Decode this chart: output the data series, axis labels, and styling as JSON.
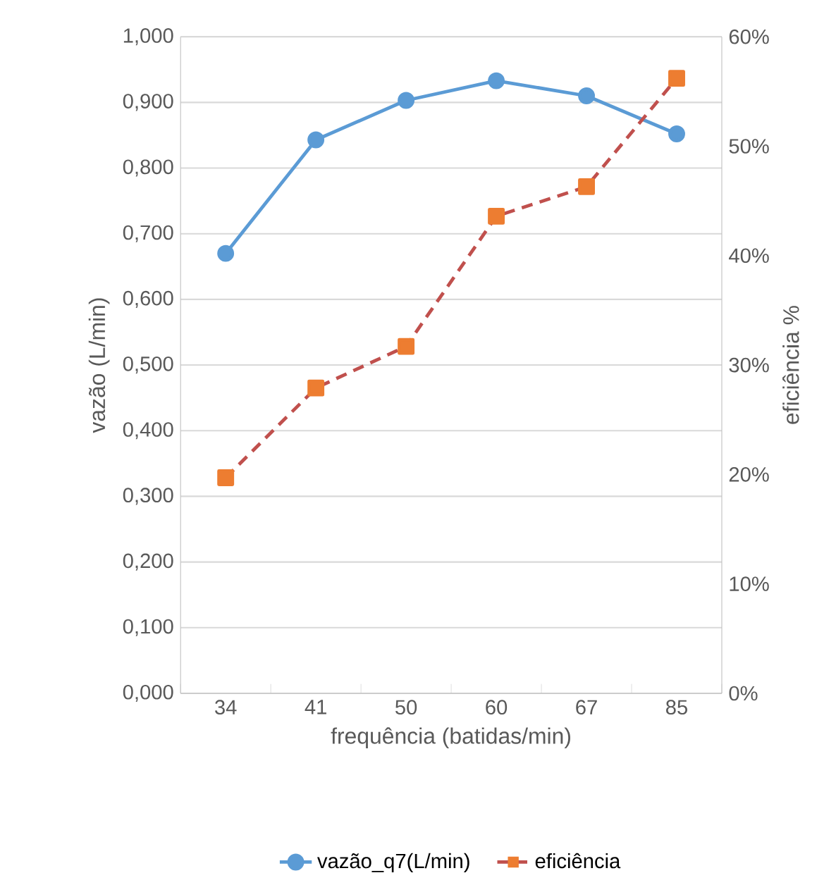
{
  "chart_data": {
    "type": "line",
    "xlabel": "frequência (batidas/min)",
    "ylabel": "vazão (L/min)",
    "y2label": "eficiência %",
    "categories": [
      "34",
      "41",
      "50",
      "60",
      "67",
      "85"
    ],
    "series": [
      {
        "name": "vazão_q7(L/min)",
        "color": "#5b9bd5",
        "marker": "circle",
        "line_style": "solid",
        "values": [
          0.67,
          0.843,
          0.903,
          0.933,
          0.91,
          0.852
        ]
      },
      {
        "name": "eficiência",
        "color": "#c0504d",
        "colors": [
          "#ed7d31",
          "#ed7d31",
          "#ed7d31",
          "#ed7d31",
          "#ed7d31",
          "#ed7d31"
        ],
        "marker": "square",
        "line_style": "dashed",
        "axis": "y2",
        "values": [
          19.7,
          27.9,
          31.7,
          43.6,
          46.3,
          56.2
        ]
      }
    ],
    "ylim": [
      0,
      1
    ],
    "yticks": [
      {
        "value": 0,
        "label": "0,000"
      },
      {
        "value": 0.1,
        "label": "0,100"
      },
      {
        "value": 0.2,
        "label": "0,200"
      },
      {
        "value": 0.3,
        "label": "0,300"
      },
      {
        "value": 0.4,
        "label": "0,400"
      },
      {
        "value": 0.5,
        "label": "0,500"
      },
      {
        "value": 0.6,
        "label": "0,600"
      },
      {
        "value": 0.7,
        "label": "0,700"
      },
      {
        "value": 0.8,
        "label": "0,800"
      },
      {
        "value": 0.9,
        "label": "0,900"
      },
      {
        "value": 1,
        "label": "1,000"
      }
    ],
    "y2lim": [
      0,
      60
    ],
    "y2ticks": [
      {
        "value": 0,
        "label": "0%"
      },
      {
        "value": 10,
        "label": "10%"
      },
      {
        "value": 20,
        "label": "20%"
      },
      {
        "value": 30,
        "label": "30%"
      },
      {
        "value": 40,
        "label": "40%"
      },
      {
        "value": 50,
        "label": "50%"
      },
      {
        "value": 60,
        "label": "60%"
      }
    ],
    "grid": "y",
    "legend": "bottom"
  }
}
